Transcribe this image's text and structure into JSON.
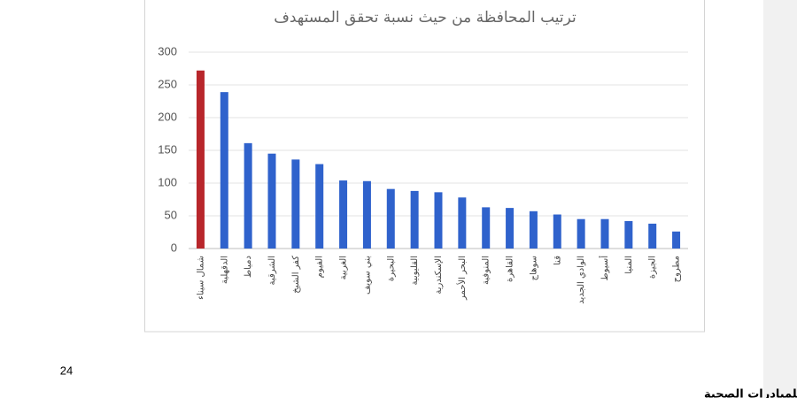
{
  "chart_data": {
    "type": "bar",
    "title": "ترتيب المحافظة من حيث نسبة  تحقق المستهدف",
    "categories": [
      "شمال سيناء",
      "الدقهلية",
      "دمياط",
      "الشرقية",
      "كفر الشيخ",
      "الفيوم",
      "الغربية",
      "بني سويف",
      "البحيرة",
      "القليوبية",
      "الإسكندرية",
      "البحر الأحمر",
      "المنوفية",
      "القاهرة",
      "سوهاج",
      "قنا",
      "الوادي الجديد",
      "أسيوط",
      "المنيا",
      "الجيزة",
      "مطروح"
    ],
    "values": [
      272,
      239,
      161,
      145,
      136,
      129,
      104,
      103,
      91,
      88,
      86,
      78,
      63,
      62,
      57,
      52,
      45,
      45,
      42,
      38,
      26
    ],
    "colors": [
      "#b8262b",
      "#2f62cc",
      "#2f62cc",
      "#2f62cc",
      "#2f62cc",
      "#2f62cc",
      "#2f62cc",
      "#2f62cc",
      "#2f62cc",
      "#2f62cc",
      "#2f62cc",
      "#2f62cc",
      "#2f62cc",
      "#2f62cc",
      "#2f62cc",
      "#2f62cc",
      "#2f62cc",
      "#2f62cc",
      "#2f62cc",
      "#2f62cc",
      "#2f62cc"
    ],
    "ylim": [
      0,
      300
    ],
    "yticks": [
      0,
      50,
      100,
      150,
      200,
      250,
      300
    ],
    "grid": true
  },
  "page_number": "24",
  "source": "مصدر التقرير: الادارة العامة للمبادرات الصحية"
}
